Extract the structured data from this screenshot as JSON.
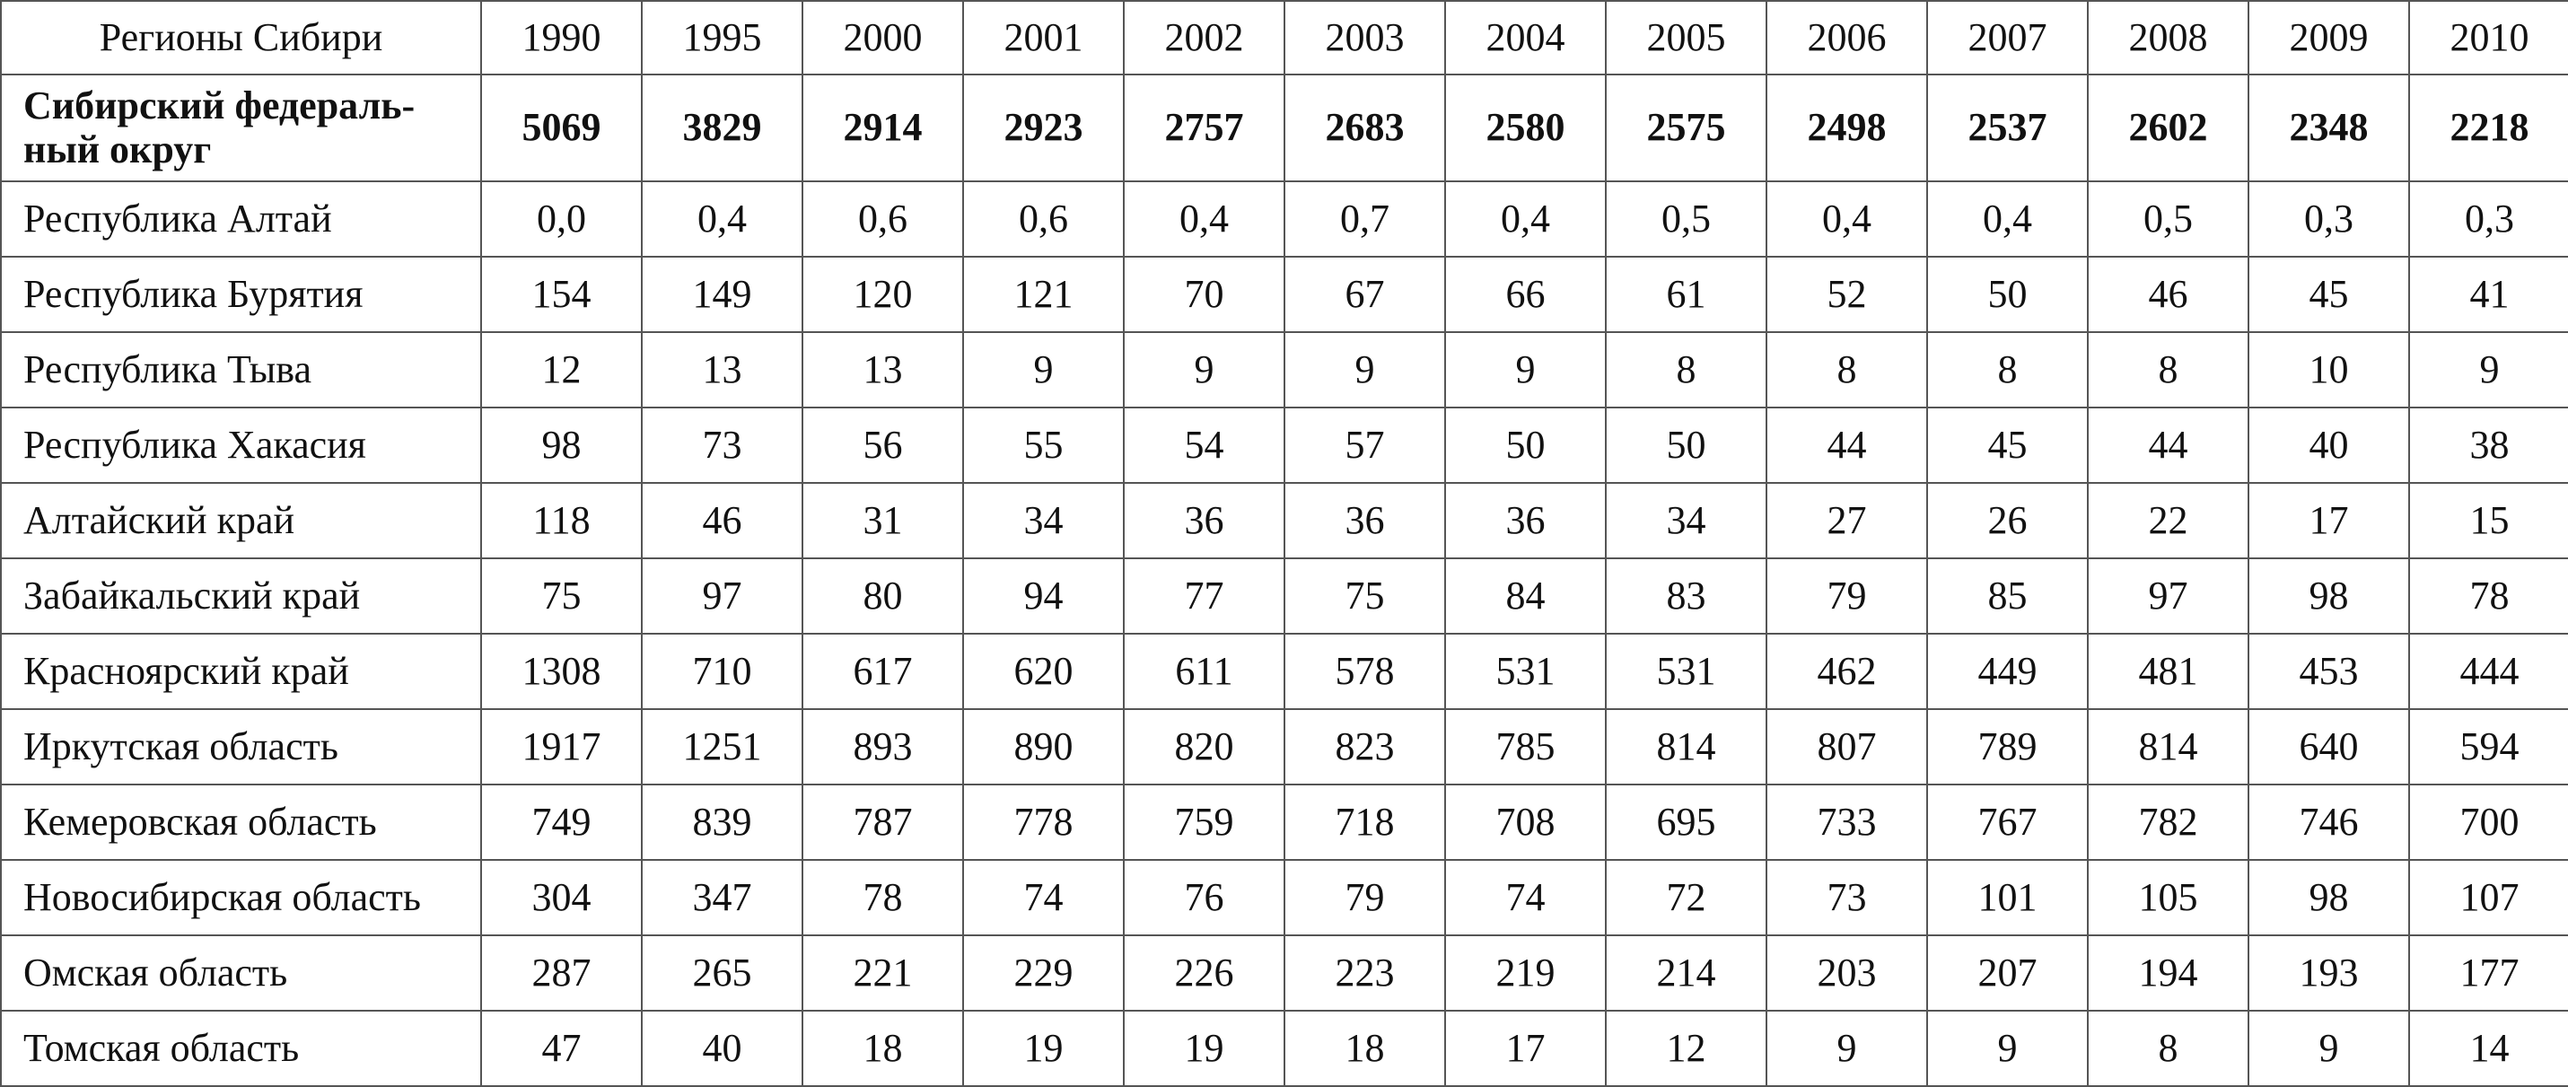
{
  "table": {
    "header": [
      "Регионы Сибири",
      "1990",
      "1995",
      "2000",
      "2001",
      "2002",
      "2003",
      "2004",
      "2005",
      "2006",
      "2007",
      "2008",
      "2009",
      "2010"
    ],
    "rows": [
      [
        "Сибирский федераль-\nный округ",
        "5069",
        "3829",
        "2914",
        "2923",
        "2757",
        "2683",
        "2580",
        "2575",
        "2498",
        "2537",
        "2602",
        "2348",
        "2218"
      ],
      [
        "Республика Алтай",
        "0,0",
        "0,4",
        "0,6",
        "0,6",
        "0,4",
        "0,7",
        "0,4",
        "0,5",
        "0,4",
        "0,4",
        "0,5",
        "0,3",
        "0,3"
      ],
      [
        "Республика Бурятия",
        "154",
        "149",
        "120",
        "121",
        "70",
        "67",
        "66",
        "61",
        "52",
        "50",
        "46",
        "45",
        "41"
      ],
      [
        "Республика Тыва",
        "12",
        "13",
        "13",
        "9",
        "9",
        "9",
        "9",
        "8",
        "8",
        "8",
        "8",
        "10",
        "9"
      ],
      [
        "Республика Хакасия",
        "98",
        "73",
        "56",
        "55",
        "54",
        "57",
        "50",
        "50",
        "44",
        "45",
        "44",
        "40",
        "38"
      ],
      [
        "Алтайский край",
        "118",
        "46",
        "31",
        "34",
        "36",
        "36",
        "36",
        "34",
        "27",
        "26",
        "22",
        "17",
        "15"
      ],
      [
        "Забайкальский край",
        "75",
        "97",
        "80",
        "94",
        "77",
        "75",
        "84",
        "83",
        "79",
        "85",
        "97",
        "98",
        "78"
      ],
      [
        "Красноярский край",
        "1308",
        "710",
        "617",
        "620",
        "611",
        "578",
        "531",
        "531",
        "462",
        "449",
        "481",
        "453",
        "444"
      ],
      [
        "Иркутская область",
        "1917",
        "1251",
        "893",
        "890",
        "820",
        "823",
        "785",
        "814",
        "807",
        "789",
        "814",
        "640",
        "594"
      ],
      [
        "Кемеровская область",
        "749",
        "839",
        "787",
        "778",
        "759",
        "718",
        "708",
        "695",
        "733",
        "767",
        "782",
        "746",
        "700"
      ],
      [
        "Новосибирская область",
        "304",
        "347",
        "78",
        "74",
        "76",
        "79",
        "74",
        "72",
        "73",
        "101",
        "105",
        "98",
        "107"
      ],
      [
        "Омская область",
        "287",
        "265",
        "221",
        "229",
        "226",
        "223",
        "219",
        "214",
        "203",
        "207",
        "194",
        "193",
        "177"
      ],
      [
        "Томская область",
        "47",
        "40",
        "18",
        "19",
        "19",
        "18",
        "17",
        "12",
        "9",
        "9",
        "8",
        "9",
        "14"
      ]
    ]
  }
}
